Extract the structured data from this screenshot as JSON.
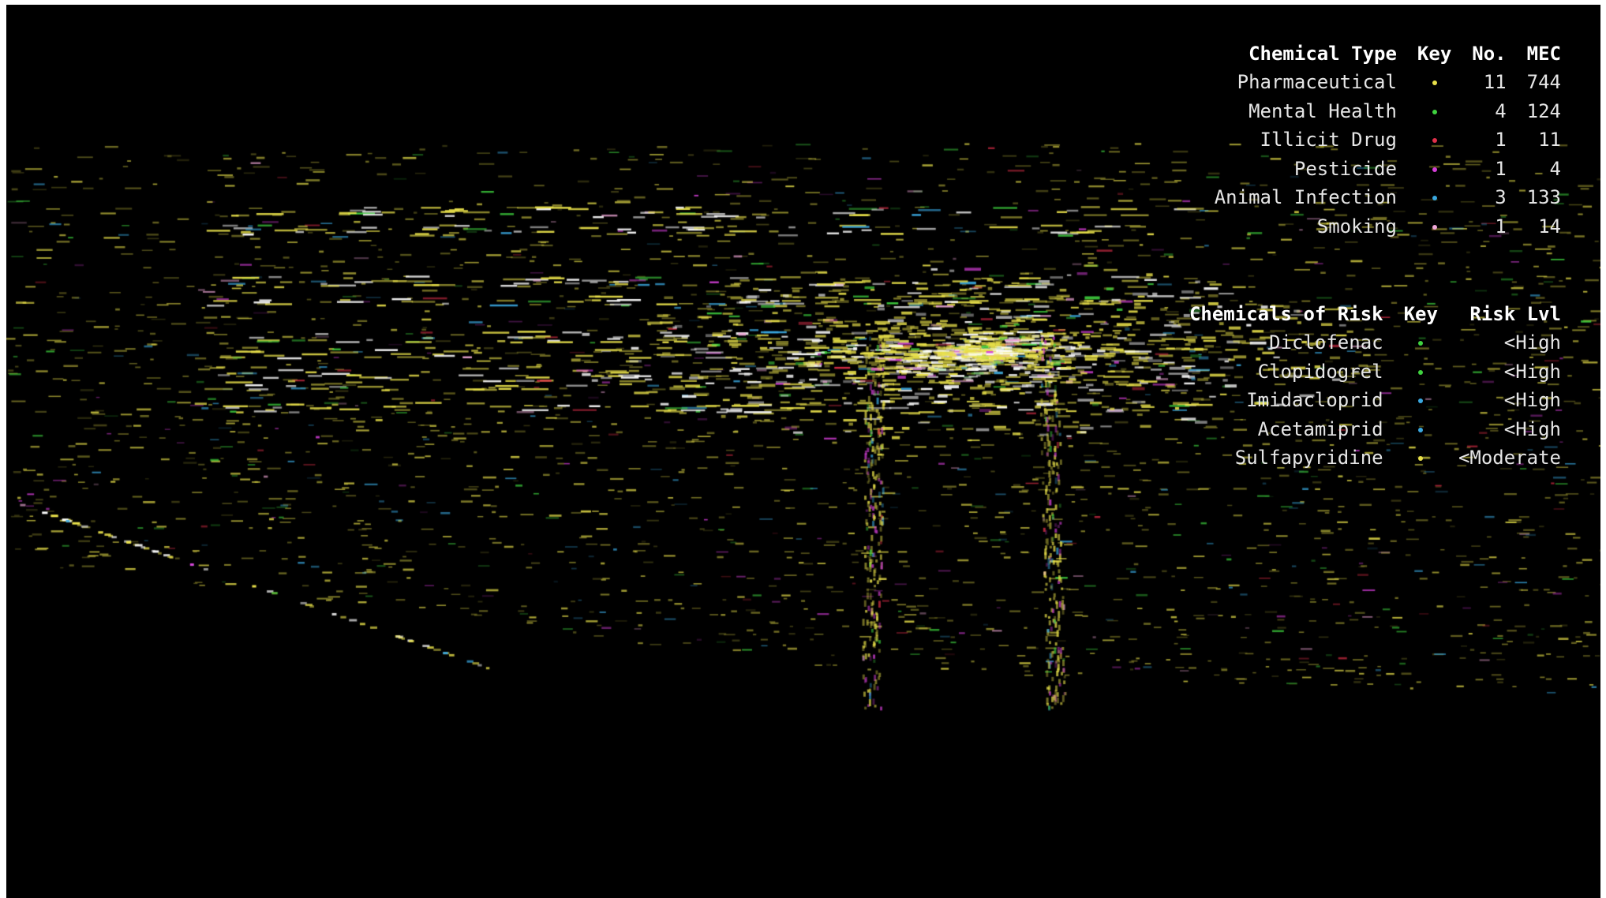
{
  "chemical_types": {
    "headers": {
      "type": "Chemical Type",
      "key": "Key",
      "count": "No.",
      "mec": "MEC"
    },
    "rows": [
      {
        "name": "Pharmaceutical",
        "color": "#e8e04a",
        "count": "11",
        "mec": "744"
      },
      {
        "name": "Mental Health",
        "color": "#3fd23f",
        "count": "4",
        "mec": "124"
      },
      {
        "name": "Illicit Drug",
        "color": "#e0304a",
        "count": "1",
        "mec": "11"
      },
      {
        "name": "Pesticide",
        "color": "#d43fd8",
        "count": "1",
        "mec": "4"
      },
      {
        "name": "Animal Infection",
        "color": "#3aa8e0",
        "count": "3",
        "mec": "133"
      },
      {
        "name": "Smoking",
        "color": "#f0a8d8",
        "count": "1",
        "mec": "14"
      }
    ]
  },
  "chemicals_of_risk": {
    "headers": {
      "name": "Chemicals of Risk",
      "key": "Key",
      "risk": "Risk Lvl"
    },
    "rows": [
      {
        "name": "Diclofenac",
        "color": "#3fd23f",
        "risk": "<High"
      },
      {
        "name": "Clopidogrel",
        "color": "#3fd23f",
        "risk": "<High"
      },
      {
        "name": "Imidacloprid",
        "color": "#3aa8e0",
        "risk": "<High"
      },
      {
        "name": "Acetamiprid",
        "color": "#3aa8e0",
        "risk": "<High"
      },
      {
        "name": "Sulfapyridine",
        "color": "#e8e04a",
        "risk": "<Moderate"
      }
    ]
  },
  "visualization": {
    "background": "#000000",
    "dominant_color": "#e8e04a",
    "highlight_color": "#ffffff"
  }
}
